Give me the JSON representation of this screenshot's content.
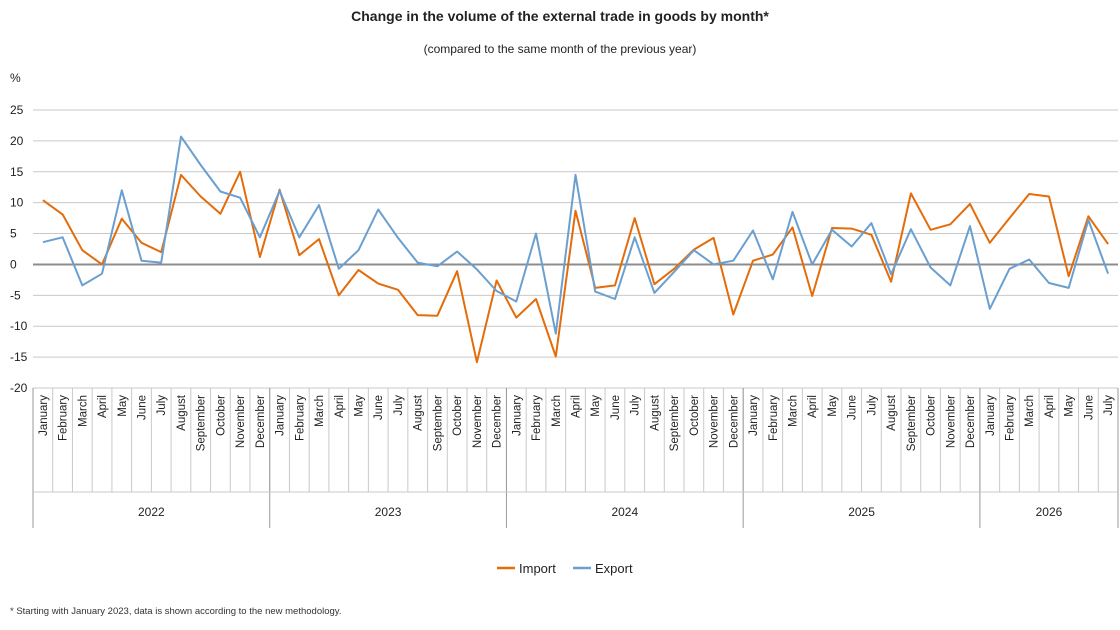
{
  "title": "Change in the volume of the external trade in goods by month*",
  "subtitle": "(compared to the same month of the previous year)",
  "footnote": "* Starting with January 2023, data is shown according to the new methodology.",
  "colors": {
    "import": "#E46C0A",
    "export": "#6A9FD0",
    "grid": "#C9C9C9",
    "zero": "#8C8C8C",
    "axis": "#999999"
  },
  "chart_data": {
    "type": "line",
    "ylabel": "%",
    "ylim": [
      -20,
      25
    ],
    "yticks": [
      -20,
      -15,
      -10,
      -5,
      0,
      5,
      10,
      15,
      20,
      25
    ],
    "grid": true,
    "legend_position": "bottom",
    "month_labels": [
      "January",
      "February",
      "March",
      "April",
      "May",
      "June",
      "July",
      "August",
      "September",
      "October",
      "November",
      "December",
      "January",
      "February",
      "March",
      "April",
      "May",
      "June",
      "July",
      "August",
      "September",
      "October",
      "November",
      "December",
      "January",
      "February",
      "March",
      "April",
      "May",
      "June",
      "July",
      "August",
      "September",
      "October",
      "November",
      "December",
      "January",
      "February",
      "March",
      "April",
      "May",
      "June",
      "July",
      "August",
      "September",
      "October",
      "November",
      "December",
      "January",
      "February",
      "March",
      "April",
      "May",
      "June",
      "July"
    ],
    "years": [
      {
        "label": "2022",
        "months": 12
      },
      {
        "label": "2023",
        "months": 12
      },
      {
        "label": "2024",
        "months": 12
      },
      {
        "label": "2025",
        "months": 12
      },
      {
        "label": "2026",
        "months": 7
      }
    ],
    "series": [
      {
        "name": "Import",
        "values": [
          10.4,
          8.1,
          2.3,
          0.0,
          7.4,
          3.5,
          2.0,
          14.5,
          11.0,
          8.2,
          15.0,
          1.2,
          12.1,
          1.5,
          4.1,
          -5.0,
          -0.9,
          -3.1,
          -4.1,
          -8.2,
          -8.3,
          -1.1,
          -15.8,
          -2.6,
          -8.6,
          -5.6,
          -14.9,
          8.7,
          -3.8,
          -3.4,
          7.5,
          -3.2,
          -0.7,
          2.4,
          4.3,
          -8.1,
          0.6,
          1.6,
          6.0,
          -5.1,
          5.9,
          5.8,
          4.8,
          -2.8,
          11.5,
          5.6,
          6.5,
          9.8,
          3.5,
          7.5,
          11.4,
          11.0,
          -1.9,
          7.8,
          3.3
        ]
      },
      {
        "name": "Export",
        "values": [
          3.6,
          4.4,
          -3.4,
          -1.5,
          12.0,
          0.6,
          0.3,
          20.7,
          16.1,
          11.8,
          10.8,
          4.4,
          11.9,
          4.4,
          9.6,
          -0.7,
          2.3,
          8.9,
          4.3,
          0.3,
          -0.3,
          2.1,
          -0.8,
          -4.3,
          -6.0,
          5.0,
          -11.2,
          14.5,
          -4.4,
          -5.6,
          4.4,
          -4.6,
          -1.2,
          2.3,
          0.0,
          0.6,
          5.5,
          -2.4,
          8.5,
          0.0,
          5.6,
          2.9,
          6.7,
          -1.6,
          5.7,
          -0.5,
          -3.4,
          6.2,
          -7.2,
          -0.7,
          0.8,
          -3.0,
          -3.8,
          7.2,
          -1.5
        ]
      }
    ]
  }
}
